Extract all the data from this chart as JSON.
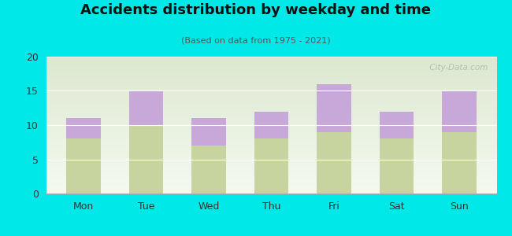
{
  "categories": [
    "Mon",
    "Tue",
    "Wed",
    "Thu",
    "Fri",
    "Sat",
    "Sun"
  ],
  "pm_values": [
    8,
    10,
    7,
    8,
    9,
    8,
    9
  ],
  "am_values": [
    3,
    5,
    4,
    4,
    7,
    4,
    6
  ],
  "am_color": "#c8a8d8",
  "pm_color": "#c8d4a0",
  "title": "Accidents distribution by weekday and time",
  "subtitle": "(Based on data from 1975 - 2021)",
  "ylim": [
    0,
    20
  ],
  "yticks": [
    0,
    5,
    10,
    15,
    20
  ],
  "background_color": "#00e8e8",
  "plot_bg_color_top": "#dce8d0",
  "plot_bg_color_bottom": "#f5faf0",
  "bar_width": 0.55,
  "watermark": " City-Data.com"
}
